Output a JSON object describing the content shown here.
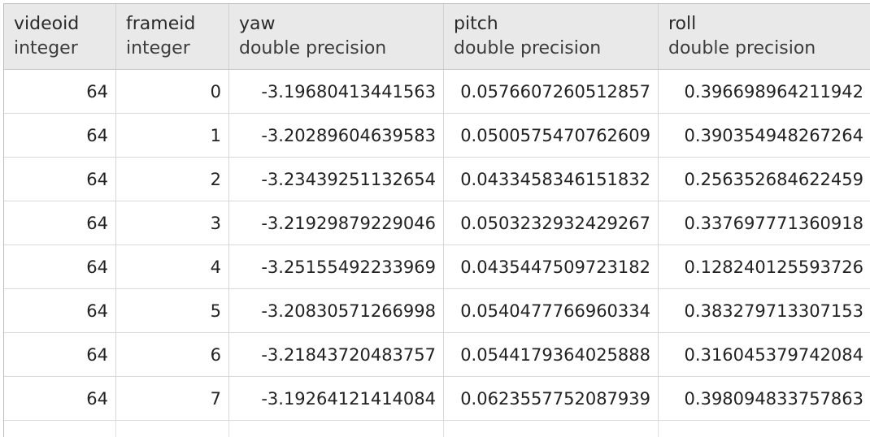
{
  "table": {
    "columns": [
      {
        "name": "videoid",
        "type": "integer"
      },
      {
        "name": "frameid",
        "type": "integer"
      },
      {
        "name": "yaw",
        "type": "double precision"
      },
      {
        "name": "pitch",
        "type": "double precision"
      },
      {
        "name": "roll",
        "type": "double precision"
      }
    ],
    "rows": [
      [
        "64",
        "0",
        "-3.19680413441563",
        "0.0576607260512857",
        "0.396698964211942"
      ],
      [
        "64",
        "1",
        "-3.20289604639583",
        "0.0500575470762609",
        "0.390354948267264"
      ],
      [
        "64",
        "2",
        "-3.23439251132654",
        "0.0433458346151832",
        "0.256352684622459"
      ],
      [
        "64",
        "3",
        "-3.21929879229046",
        "0.0503232932429267",
        "0.337697771360918"
      ],
      [
        "64",
        "4",
        "-3.25155492233969",
        "0.0435447509723182",
        "0.128240125593726"
      ],
      [
        "64",
        "5",
        "-3.20830571266998",
        "0.0540477766960334",
        "0.383279713307153"
      ],
      [
        "64",
        "6",
        "-3.21843720483757",
        "0.0544179364025888",
        "0.316045379742084"
      ],
      [
        "64",
        "7",
        "-3.19264121414084",
        "0.0623557752087939",
        "0.398094833757863"
      ]
    ]
  }
}
